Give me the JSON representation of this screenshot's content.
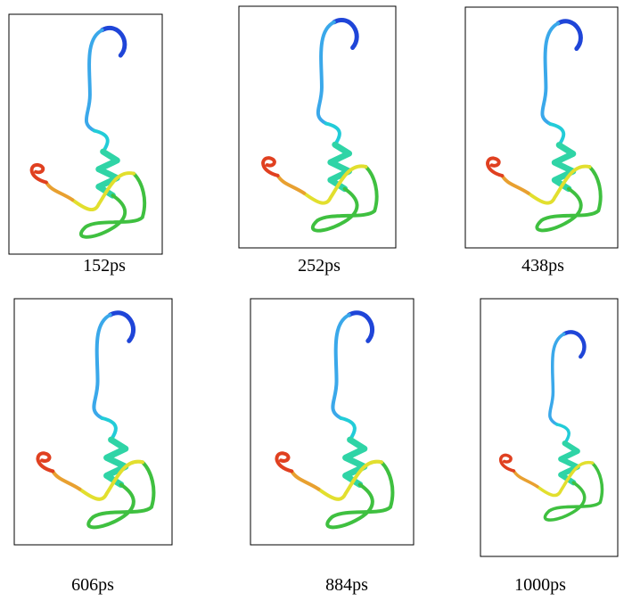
{
  "panels": [
    {
      "label": "152ps"
    },
    {
      "label": "252ps"
    },
    {
      "label": "438ps"
    },
    {
      "label": "606ps"
    },
    {
      "label": "884ps"
    },
    {
      "label": "1000ps"
    }
  ]
}
